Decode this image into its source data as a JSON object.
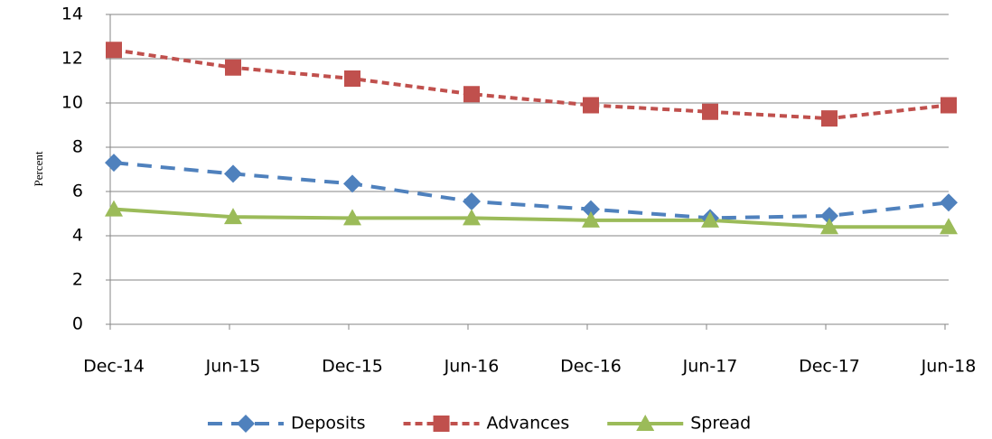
{
  "chart_data": {
    "type": "line",
    "y_label": "Percent",
    "categories": [
      "Dec-14",
      "Jun-15",
      "Dec-15",
      "Jun-16",
      "Dec-16",
      "Jun-17",
      "Dec-17",
      "Jun-18"
    ],
    "series": [
      {
        "name": "Deposits",
        "color": "#4f81bd",
        "marker": "diamond",
        "dash": "long",
        "values": [
          7.3,
          6.8,
          6.35,
          5.55,
          5.2,
          4.8,
          4.9,
          5.5
        ]
      },
      {
        "name": "Advances",
        "color": "#c0504d",
        "marker": "square",
        "dash": "short",
        "values": [
          12.4,
          11.6,
          11.1,
          10.4,
          9.9,
          9.6,
          9.3,
          9.9
        ]
      },
      {
        "name": "Spread",
        "color": "#9bbb59",
        "marker": "triangle",
        "dash": "solid",
        "values": [
          5.2,
          4.85,
          4.8,
          4.8,
          4.7,
          4.7,
          4.4,
          4.4
        ]
      }
    ],
    "ylim": [
      0,
      14
    ],
    "yticks": [
      0,
      2,
      4,
      6,
      8,
      10,
      12,
      14
    ],
    "grid": true,
    "legend": "bottom"
  }
}
